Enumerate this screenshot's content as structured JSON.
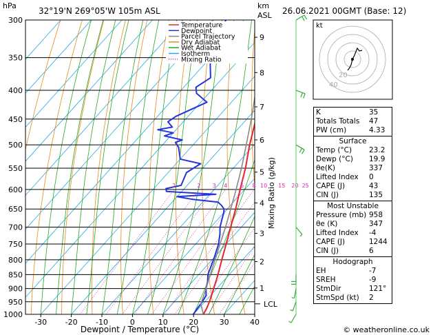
{
  "header": {
    "location": "32°19'N 269°05'W 105m ASL",
    "datetime": "26.06.2021 00GMT (Base: 12)",
    "hpa_label": "hPa",
    "km_label": "km",
    "asl_label": "ASL"
  },
  "footer": {
    "credit": "© weatheronline.co.uk"
  },
  "chart_data": {
    "type": "line",
    "xlabel": "Dewpoint / Temperature (°C)",
    "ylabel_right": "Mixing Ratio (g/kg)",
    "x_ticks": [
      -30,
      -20,
      -10,
      0,
      10,
      20,
      30,
      40
    ],
    "x_range": [
      -35,
      40
    ],
    "pressure_levels": [
      300,
      350,
      400,
      450,
      500,
      550,
      600,
      650,
      700,
      750,
      800,
      850,
      900,
      950,
      1000
    ],
    "p_range": [
      300,
      1000
    ],
    "km_ticks": [
      {
        "km": "1",
        "p": 898
      },
      {
        "km": "2",
        "p": 806
      },
      {
        "km": "3",
        "p": 718
      },
      {
        "km": "4",
        "p": 634
      },
      {
        "km": "5",
        "p": 559
      },
      {
        "km": "6",
        "p": 490
      },
      {
        "km": "7",
        "p": 428
      },
      {
        "km": "8",
        "p": 372
      },
      {
        "km": "9",
        "p": 322
      }
    ],
    "lcl": {
      "label": "LCL",
      "p": 958
    },
    "mixing_ratio_labels": [
      "1",
      "2",
      "3",
      "4",
      "6",
      "8",
      "10",
      "15",
      "20",
      "25"
    ],
    "mixing_ratio_values": [
      1,
      2,
      3,
      4,
      6,
      8,
      10,
      15,
      20,
      25
    ],
    "legend": [
      {
        "name": "Temperature",
        "color": "#e8222a"
      },
      {
        "name": "Dewpoint",
        "color": "#2233dd"
      },
      {
        "name": "Parcel Trajectory",
        "color": "#888888"
      },
      {
        "name": "Dry Adiabat",
        "color": "#e88a18"
      },
      {
        "name": "Wet Adiabat",
        "color": "#22aa22"
      },
      {
        "name": "Isotherm",
        "color": "#22aadd"
      },
      {
        "name": "Mixing Ratio",
        "color": "#dd22aa"
      }
    ],
    "series": [
      {
        "name": "Temperature",
        "color": "#e8222a",
        "points": [
          [
            1000,
            23.2
          ],
          [
            975,
            22.5
          ],
          [
            950,
            21.5
          ],
          [
            925,
            20.3
          ],
          [
            900,
            19.0
          ],
          [
            875,
            17.7
          ],
          [
            850,
            16.3
          ],
          [
            800,
            13.2
          ],
          [
            750,
            10.0
          ],
          [
            700,
            6.5
          ],
          [
            650,
            2.8
          ],
          [
            600,
            -1.5
          ],
          [
            550,
            -6.0
          ],
          [
            500,
            -11.5
          ],
          [
            450,
            -17.0
          ],
          [
            400,
            -23.5
          ],
          [
            350,
            -31.5
          ],
          [
            300,
            -40.0
          ]
        ]
      },
      {
        "name": "Dewpoint",
        "color": "#2233dd",
        "points": [
          [
            1000,
            19.9
          ],
          [
            975,
            19.5
          ],
          [
            950,
            19.2
          ],
          [
            925,
            18.5
          ],
          [
            900,
            16.5
          ],
          [
            875,
            15.0
          ],
          [
            850,
            13.0
          ],
          [
            800,
            10.5
          ],
          [
            750,
            7.5
          ],
          [
            720,
            5.0
          ],
          [
            700,
            3.0
          ],
          [
            680,
            1.5
          ],
          [
            660,
            0.0
          ],
          [
            650,
            -1.0
          ],
          [
            640,
            -3.0
          ],
          [
            632,
            -5.0
          ],
          [
            625,
            -14.0
          ],
          [
            618,
            -20.0
          ],
          [
            612,
            -8.0
          ],
          [
            605,
            -25.0
          ],
          [
            598,
            -26.0
          ],
          [
            590,
            -22.0
          ],
          [
            560,
            -24.0
          ],
          [
            540,
            -22.0
          ],
          [
            530,
            -30.0
          ],
          [
            505,
            -34.0
          ],
          [
            495,
            -36.5
          ],
          [
            490,
            -35.0
          ],
          [
            482,
            -42.0
          ],
          [
            476,
            -40.0
          ],
          [
            470,
            -46.0
          ],
          [
            465,
            -42.0
          ],
          [
            455,
            -45.0
          ],
          [
            445,
            -44.0
          ],
          [
            420,
            -38.0
          ],
          [
            405,
            -44.0
          ],
          [
            395,
            -46.0
          ],
          [
            380,
            -44.0
          ],
          [
            360,
            -48.0
          ],
          [
            340,
            -52.0
          ],
          [
            320,
            -54.0
          ],
          [
            300,
            -56.0
          ]
        ]
      },
      {
        "name": "Parcel Trajectory",
        "color": "#888888",
        "points": [
          [
            1000,
            23.2
          ],
          [
            958,
            19.3
          ],
          [
            900,
            16.5
          ],
          [
            850,
            13.8
          ],
          [
            800,
            11.0
          ],
          [
            750,
            8.0
          ],
          [
            700,
            4.8
          ],
          [
            650,
            1.2
          ],
          [
            600,
            -2.8
          ],
          [
            550,
            -7.3
          ],
          [
            500,
            -12.6
          ],
          [
            450,
            -18.5
          ],
          [
            400,
            -25.5
          ],
          [
            350,
            -34.0
          ],
          [
            300,
            -44.0
          ]
        ]
      }
    ],
    "wind_barbs": [
      {
        "p": 1000,
        "dir": 210,
        "speed": 5
      },
      {
        "p": 950,
        "dir": 200,
        "speed": 5
      },
      {
        "p": 900,
        "dir": 190,
        "speed": 5
      },
      {
        "p": 850,
        "dir": 180,
        "speed": 10
      },
      {
        "p": 700,
        "dir": 140,
        "speed": 5
      },
      {
        "p": 500,
        "dir": 120,
        "speed": 10
      },
      {
        "p": 400,
        "dir": 110,
        "speed": 10
      },
      {
        "p": 300,
        "dir": 60,
        "speed": 10
      }
    ]
  },
  "hodograph": {
    "label": "kt",
    "ring_labels": [
      "40",
      "20"
    ]
  },
  "indices": {
    "rows": [
      {
        "k": "K",
        "v": "35"
      },
      {
        "k": "Totals Totals",
        "v": "47"
      },
      {
        "k": "PW (cm)",
        "v": "4.33"
      }
    ]
  },
  "surface": {
    "title": "Surface",
    "rows": [
      {
        "k": "Temp (°C)",
        "v": "23.2"
      },
      {
        "k": "Dewp (°C)",
        "v": "19.9"
      },
      {
        "k": "θe(K)",
        "v": "337"
      },
      {
        "k": "Lifted Index",
        "v": "0"
      },
      {
        "k": "CAPE (J)",
        "v": "43"
      },
      {
        "k": "CIN (J)",
        "v": "135"
      }
    ]
  },
  "most_unstable": {
    "title": "Most Unstable",
    "rows": [
      {
        "k": "Pressure (mb)",
        "v": "958"
      },
      {
        "k": "θe (K)",
        "v": "347"
      },
      {
        "k": "Lifted Index",
        "v": "-4"
      },
      {
        "k": "CAPE (J)",
        "v": "1244"
      },
      {
        "k": "CIN (J)",
        "v": "6"
      }
    ]
  },
  "hodo_table": {
    "title": "Hodograph",
    "rows": [
      {
        "k": "EH",
        "v": "-7"
      },
      {
        "k": "SREH",
        "v": "-9"
      },
      {
        "k": "StmDir",
        "v": "121°"
      },
      {
        "k": "StmSpd (kt)",
        "v": "2"
      }
    ]
  }
}
